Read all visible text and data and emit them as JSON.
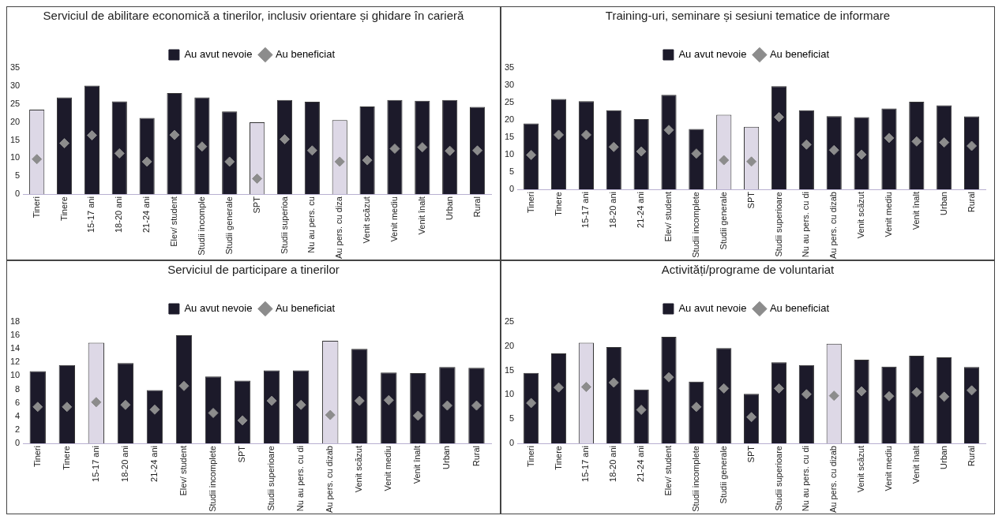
{
  "chart_data": [
    {
      "type": "bar",
      "title": "Serviciul de abilitare economică a tinerilor, inclusiv orientare și ghidare în carieră",
      "categories": [
        "Tineri",
        "Tinere",
        "15-17 ani",
        "18-20 ani",
        "21-24 ani",
        "Elev/ student",
        "Studii incomple",
        "Studii generale",
        "SPT",
        "Studii superioa",
        "Nu au pers. cu",
        "Au pers. cu diza",
        "Venit scăzut",
        "Venit mediu",
        "Venit înalt",
        "Urban",
        "Rural"
      ],
      "ylim": [
        0,
        35
      ],
      "yticks": [
        0,
        5,
        10,
        15,
        20,
        25,
        30,
        35
      ],
      "legend": "top",
      "grid": false,
      "series": [
        {
          "name": "Au avut nevoie",
          "color": "#1c1a2a",
          "colors": [
            "#ddd8e6",
            "#1c1a2a",
            "#1c1a2a",
            "#1c1a2a",
            "#1c1a2a",
            "#1c1a2a",
            "#1c1a2a",
            "#1c1a2a",
            "#ddd8e6",
            "#1c1a2a",
            "#1c1a2a",
            "#ddd8e6",
            "#1c1a2a",
            "#1c1a2a",
            "#1c1a2a",
            "#1c1a2a",
            "#1c1a2a"
          ],
          "values": [
            23.4,
            26.8,
            30.1,
            25.7,
            21.1,
            28,
            26.8,
            22.9,
            19.9,
            26.1,
            25.6,
            20.5,
            24.3,
            26.1,
            25.9,
            26.1,
            24.2
          ]
        },
        {
          "name": "Au beneficiat",
          "type": "scatter",
          "marker": "diamond",
          "color": "#8c8c8c",
          "values": [
            9.7,
            14.1,
            16.3,
            11.3,
            9,
            16.4,
            13.2,
            9,
            4.3,
            15.2,
            12.1,
            9,
            9.4,
            12.6,
            13,
            12,
            12.1
          ]
        }
      ]
    },
    {
      "type": "bar",
      "title": "Training-uri, seminare și sesiuni tematice de informare",
      "categories": [
        "Tineri",
        "Tinere",
        "15-17 ani",
        "18-20 ani",
        "21-24 ani",
        "Elev/ student",
        "Studii incomplete",
        "Studii generale",
        "SPT",
        "Studii superioare",
        "Nu au pers. cu di",
        "Au pers. cu dizab",
        "Venit scăzut",
        "Venit mediu",
        "Venit înalt",
        "Urban",
        "Rural"
      ],
      "ylim": [
        0,
        35
      ],
      "yticks": [
        0,
        5,
        10,
        15,
        20,
        25,
        30,
        35
      ],
      "legend": "top",
      "grid": false,
      "series": [
        {
          "name": "Au avut nevoie",
          "color": "#1c1a2a",
          "colors": [
            "#1c1a2a",
            "#1c1a2a",
            "#1c1a2a",
            "#1c1a2a",
            "#1c1a2a",
            "#1c1a2a",
            "#1c1a2a",
            "#ddd8e6",
            "#ddd8e6",
            "#1c1a2a",
            "#1c1a2a",
            "#1c1a2a",
            "#1c1a2a",
            "#1c1a2a",
            "#1c1a2a",
            "#1c1a2a",
            "#1c1a2a"
          ],
          "values": [
            19,
            26,
            25.4,
            22.8,
            20.2,
            27.2,
            17.4,
            21.5,
            18,
            29.7,
            22.8,
            21.1,
            20.8,
            23.3,
            25.2,
            24.2,
            21
          ]
        },
        {
          "name": "Au beneficiat",
          "type": "scatter",
          "marker": "diamond",
          "color": "#8c8c8c",
          "values": [
            9.9,
            15.7,
            15.7,
            12.2,
            10.9,
            17.1,
            10.3,
            8.4,
            8,
            20.8,
            12.9,
            11.3,
            10,
            14.8,
            13.8,
            13.5,
            12.5
          ]
        }
      ]
    },
    {
      "type": "bar",
      "title": "Serviciul de participare a tinerilor",
      "categories": [
        "Tineri",
        "Tinere",
        "15-17 ani",
        "18-20 ani",
        "21-24 ani",
        "Elev/ student",
        "Studii incomplete",
        "SPT",
        "Studii superioare",
        "Nu au pers. cu di",
        "Au pers. cu dizab",
        "Venit scăzut",
        "Venit mediu",
        "Venit înalt",
        "Urban",
        "Rural"
      ],
      "ylim": [
        0,
        18
      ],
      "yticks": [
        0,
        2,
        4,
        6,
        8,
        10,
        12,
        14,
        16,
        18
      ],
      "legend": "top",
      "grid": false,
      "series": [
        {
          "name": "Au avut nevoie",
          "color": "#1c1a2a",
          "colors": [
            "#1c1a2a",
            "#1c1a2a",
            "#ddd8e6",
            "#1c1a2a",
            "#1c1a2a",
            "#1c1a2a",
            "#1c1a2a",
            "#1c1a2a",
            "#1c1a2a",
            "#1c1a2a",
            "#ddd8e6",
            "#1c1a2a",
            "#1c1a2a",
            "#1c1a2a",
            "#1c1a2a",
            "#1c1a2a"
          ],
          "values": [
            10.7,
            11.6,
            14.9,
            11.9,
            7.9,
            16,
            9.9,
            9.3,
            10.8,
            10.8,
            15.2,
            14,
            10.5,
            10.4,
            11.3,
            11.2
          ]
        },
        {
          "name": "Au beneficiat",
          "type": "scatter",
          "marker": "diamond",
          "color": "#8c8c8c",
          "values": [
            5.4,
            5.4,
            6.1,
            5.7,
            5,
            8.5,
            4.5,
            3.4,
            6.3,
            5.7,
            4.2,
            6.3,
            6.4,
            4.1,
            5.6,
            5.6
          ]
        }
      ]
    },
    {
      "type": "bar",
      "title": "Activități/programe de voluntariat",
      "categories": [
        "Tineri",
        "Tinere",
        "15-17 ani",
        "18-20 ani",
        "21-24 ani",
        "Elev/ student",
        "Studii incomplete",
        "Studii generale",
        "SPT",
        "Studii superioare",
        "Nu au pers. cu di",
        "Au pers. cu dizab",
        "Venit scăzut",
        "Venit mediu",
        "Venit înalt",
        "Urban",
        "Rural"
      ],
      "ylim": [
        0,
        25
      ],
      "yticks": [
        0,
        5,
        10,
        15,
        20,
        25
      ],
      "legend": "top",
      "grid": false,
      "series": [
        {
          "name": "Au avut nevoie",
          "color": "#1c1a2a",
          "colors": [
            "#1c1a2a",
            "#1c1a2a",
            "#ddd8e6",
            "#1c1a2a",
            "#1c1a2a",
            "#1c1a2a",
            "#1c1a2a",
            "#1c1a2a",
            "#1c1a2a",
            "#1c1a2a",
            "#1c1a2a",
            "#ddd8e6",
            "#1c1a2a",
            "#1c1a2a",
            "#1c1a2a",
            "#1c1a2a",
            "#1c1a2a"
          ],
          "values": [
            14.5,
            18.5,
            20.7,
            19.8,
            11.1,
            21.9,
            12.7,
            19.6,
            10.2,
            16.7,
            16.1,
            20.5,
            17.2,
            15.8,
            18,
            17.7,
            15.7
          ]
        },
        {
          "name": "Au beneficiat",
          "type": "scatter",
          "marker": "diamond",
          "color": "#8c8c8c",
          "values": [
            8.3,
            11.5,
            11.6,
            12.5,
            6.9,
            13.6,
            7.5,
            11.3,
            5.4,
            11.3,
            10.1,
            9.8,
            10.7,
            9.7,
            10.5,
            9.6,
            10.9
          ]
        }
      ]
    }
  ]
}
